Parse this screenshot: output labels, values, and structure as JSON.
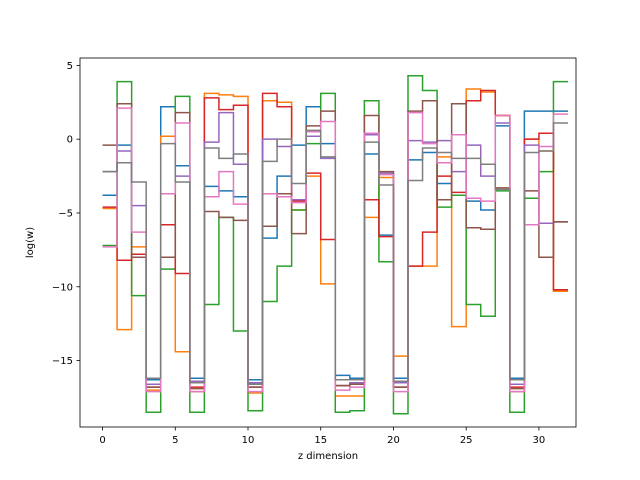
{
  "chart_data": {
    "type": "line",
    "drawstyle": "steps-post",
    "title": "",
    "xlabel": "z dimension",
    "ylabel": "log(w)",
    "xlim": [
      -1.55,
      32.55
    ],
    "ylim": [
      -19.5,
      5.5
    ],
    "xticks": [
      0,
      5,
      10,
      15,
      20,
      25,
      30
    ],
    "yticks": [
      5,
      0,
      -5,
      -10,
      -15
    ],
    "ytick_labels": [
      "5",
      "0",
      "−5",
      "−10",
      "−15"
    ],
    "grid": false,
    "legend": "none",
    "series": [
      {
        "color": "#1f77b4",
        "values": [
          -3.8,
          -0.4,
          -8.0,
          -16.3,
          2.2,
          -1.8,
          -16.2,
          -3.2,
          -3.5,
          -3.9,
          -16.3,
          -6.7,
          -2.5,
          -0.4,
          2.2,
          -0.3,
          -16.0,
          -16.2,
          -1.0,
          -6.5,
          -16.2,
          -1.4,
          -0.9,
          -3.0,
          -3.8,
          -4.2,
          -4.8,
          0.9,
          -16.2,
          1.9,
          1.9,
          1.9
        ]
      },
      {
        "color": "#ff7f0e",
        "values": [
          -4.7,
          -12.9,
          -7.3,
          -17.0,
          0.2,
          -14.4,
          -17.1,
          3.1,
          3.0,
          2.9,
          -17.2,
          2.6,
          2.5,
          -4.8,
          -2.5,
          -9.8,
          -17.4,
          -17.4,
          -5.3,
          -2.6,
          -14.7,
          -8.6,
          -8.6,
          -1.2,
          -12.7,
          3.4,
          3.2,
          1.6,
          -17.1,
          0.0,
          -0.8,
          -10.3
        ]
      },
      {
        "color": "#2ca02c",
        "values": [
          -7.2,
          3.9,
          -10.6,
          -18.5,
          -8.8,
          2.9,
          -18.5,
          -11.2,
          -5.3,
          -13.0,
          -18.4,
          -11.0,
          -8.6,
          -4.8,
          -0.3,
          3.1,
          -18.5,
          -18.4,
          2.6,
          -8.3,
          -18.6,
          4.3,
          3.3,
          -4.6,
          -3.8,
          -11.2,
          -12.0,
          -3.5,
          -18.5,
          -4.0,
          -2.2,
          3.9
        ]
      },
      {
        "color": "#d62728",
        "values": [
          -4.6,
          -8.2,
          -7.8,
          -16.8,
          -5.8,
          -9.1,
          -16.8,
          2.8,
          2.0,
          2.3,
          -16.8,
          3.1,
          2.2,
          -4.2,
          -2.3,
          -6.8,
          -16.7,
          -16.6,
          -4.1,
          -6.6,
          -16.8,
          -8.6,
          -6.3,
          -2.5,
          -3.6,
          2.6,
          3.3,
          1.6,
          -16.8,
          0.0,
          0.4,
          -10.2
        ]
      },
      {
        "color": "#9467bd",
        "values": [
          -2.2,
          -0.8,
          -4.5,
          -16.6,
          -3.7,
          -2.5,
          -16.4,
          -0.2,
          1.8,
          -1.7,
          -16.5,
          0.0,
          -0.5,
          -4.1,
          0.2,
          -1.3,
          -16.7,
          -16.5,
          0.3,
          -2.3,
          -16.5,
          -0.1,
          -0.2,
          -0.1,
          -2.2,
          -0.4,
          -2.5,
          1.1,
          -16.6,
          -0.4,
          -5.7,
          -5.6
        ]
      },
      {
        "color": "#8c564b",
        "values": [
          -0.4,
          2.4,
          -8.0,
          -16.8,
          -8.0,
          1.8,
          -16.9,
          -4.9,
          -5.3,
          -5.5,
          -16.8,
          -5.9,
          -3.7,
          -6.4,
          0.9,
          1.9,
          -16.7,
          -16.6,
          1.6,
          -2.2,
          -16.8,
          1.9,
          2.6,
          -4.1,
          2.4,
          -6.0,
          -6.1,
          -3.3,
          -16.9,
          -3.5,
          -8.0,
          -5.6
        ]
      },
      {
        "color": "#e377c2",
        "values": [
          -7.3,
          2.1,
          -6.3,
          -17.1,
          -3.7,
          1.1,
          -17.1,
          -3.9,
          -2.2,
          -4.4,
          -17.1,
          -3.7,
          -3.9,
          -4.3,
          0.5,
          1.2,
          -17.0,
          -16.8,
          0.4,
          -2.4,
          -17.1,
          1.8,
          -0.3,
          -1.6,
          0.3,
          -4.0,
          -4.2,
          1.6,
          -17.1,
          -5.8,
          -0.5,
          1.7
        ]
      },
      {
        "color": "#7f7f7f",
        "values": [
          -2.2,
          -1.6,
          -2.9,
          -16.2,
          -0.3,
          -2.9,
          -16.5,
          -0.6,
          -1.3,
          -1.0,
          -16.6,
          -1.5,
          0.0,
          -3.0,
          0.6,
          -1.2,
          -16.3,
          -16.3,
          -0.2,
          -3.1,
          -16.4,
          -2.8,
          -0.6,
          -0.9,
          -1.3,
          -1.3,
          -1.7,
          -3.4,
          -16.3,
          -0.9,
          -0.8,
          1.1
        ]
      }
    ]
  }
}
